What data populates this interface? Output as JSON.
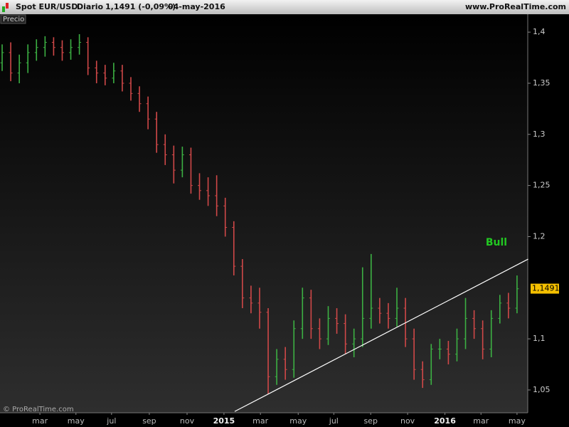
{
  "chart_data": {
    "type": "ohlc",
    "title": "Spot EUR/USD",
    "period": "Diario",
    "price_change": "1,1491 (-0,09%)",
    "date": "04-may-2016",
    "site": "www.ProRealTime.com",
    "pane_label": "Precio",
    "copyright": "© ProRealTime.com",
    "annotation": "Bull",
    "up_color": "#3cb043",
    "down_color": "#d04848",
    "trendline_color": "#ffffff",
    "annotation_color": "#22c822",
    "x": [
      0,
      2,
      4,
      6,
      8,
      10,
      12,
      14,
      16,
      18,
      20,
      22,
      24,
      26,
      28,
      30,
      32,
      34,
      36,
      38,
      40,
      42,
      44,
      46,
      48,
      50,
      52,
      54,
      56,
      58,
      60,
      62,
      64,
      66,
      68,
      70,
      72,
      74,
      76,
      78,
      80,
      82,
      84,
      86,
      88,
      90,
      92,
      94,
      96,
      98,
      100,
      102,
      104,
      106,
      108,
      110,
      112,
      114,
      116,
      118,
      120
    ],
    "open": [
      1.37,
      1.38,
      1.36,
      1.37,
      1.38,
      1.385,
      1.39,
      1.385,
      1.38,
      1.385,
      1.39,
      1.365,
      1.36,
      1.355,
      1.362,
      1.35,
      1.34,
      1.33,
      1.315,
      1.29,
      1.28,
      1.265,
      1.28,
      1.25,
      1.245,
      1.24,
      1.23,
      1.209,
      1.171,
      1.14,
      1.135,
      1.126,
      1.063,
      1.08,
      1.07,
      1.11,
      1.14,
      1.11,
      1.1,
      1.12,
      1.115,
      1.095,
      1.1,
      1.12,
      1.13,
      1.125,
      1.12,
      1.13,
      1.1,
      1.07,
      1.06,
      1.09,
      1.09,
      1.085,
      1.1,
      1.12,
      1.11,
      1.09,
      1.12,
      1.135,
      1.13
    ],
    "high": [
      1.388,
      1.39,
      1.378,
      1.388,
      1.393,
      1.396,
      1.395,
      1.392,
      1.393,
      1.398,
      1.395,
      1.372,
      1.368,
      1.37,
      1.368,
      1.356,
      1.347,
      1.337,
      1.322,
      1.3,
      1.289,
      1.288,
      1.287,
      1.262,
      1.258,
      1.26,
      1.238,
      1.215,
      1.178,
      1.152,
      1.15,
      1.13,
      1.09,
      1.092,
      1.118,
      1.15,
      1.148,
      1.12,
      1.132,
      1.13,
      1.124,
      1.11,
      1.17,
      1.183,
      1.14,
      1.135,
      1.15,
      1.14,
      1.11,
      1.078,
      1.095,
      1.1,
      1.098,
      1.11,
      1.14,
      1.128,
      1.118,
      1.128,
      1.143,
      1.145,
      1.162
    ],
    "low": [
      1.362,
      1.352,
      1.35,
      1.36,
      1.372,
      1.376,
      1.377,
      1.372,
      1.373,
      1.378,
      1.358,
      1.35,
      1.348,
      1.35,
      1.342,
      1.333,
      1.322,
      1.305,
      1.282,
      1.27,
      1.252,
      1.258,
      1.242,
      1.236,
      1.23,
      1.22,
      1.2,
      1.162,
      1.13,
      1.125,
      1.11,
      1.046,
      1.055,
      1.06,
      1.062,
      1.1,
      1.1,
      1.09,
      1.094,
      1.105,
      1.085,
      1.082,
      1.092,
      1.11,
      1.115,
      1.11,
      1.112,
      1.092,
      1.06,
      1.052,
      1.055,
      1.08,
      1.075,
      1.078,
      1.09,
      1.1,
      1.08,
      1.082,
      1.115,
      1.12,
      1.125
    ],
    "close": [
      1.38,
      1.36,
      1.37,
      1.38,
      1.385,
      1.39,
      1.385,
      1.38,
      1.385,
      1.39,
      1.365,
      1.36,
      1.355,
      1.362,
      1.35,
      1.34,
      1.33,
      1.315,
      1.29,
      1.28,
      1.265,
      1.28,
      1.25,
      1.245,
      1.24,
      1.23,
      1.209,
      1.171,
      1.14,
      1.135,
      1.126,
      1.063,
      1.08,
      1.07,
      1.11,
      1.14,
      1.11,
      1.1,
      1.12,
      1.115,
      1.095,
      1.1,
      1.12,
      1.13,
      1.125,
      1.12,
      1.13,
      1.1,
      1.07,
      1.06,
      1.09,
      1.09,
      1.085,
      1.1,
      1.12,
      1.11,
      1.09,
      1.12,
      1.135,
      1.13,
      1.149
    ],
    "trendline": {
      "x": [
        54.2,
        122.6
      ],
      "values": [
        1.029,
        1.178
      ]
    },
    "last_price": {
      "value": 1.1491,
      "label": "1,1491"
    },
    "xlim": [
      -0.5,
      122.5
    ],
    "ylim": [
      1.0277,
      1.4175
    ],
    "xticks": [
      {
        "value": 8.8,
        "label": "mar"
      },
      {
        "value": 17.2,
        "label": "may"
      },
      {
        "value": 25.5,
        "label": "jul"
      },
      {
        "value": 34.3,
        "label": "sep"
      },
      {
        "value": 43.1,
        "label": "nov"
      },
      {
        "value": 51.7,
        "label": "2015"
      },
      {
        "value": 60.2,
        "label": "mar"
      },
      {
        "value": 69,
        "label": "may"
      },
      {
        "value": 77.3,
        "label": "jul"
      },
      {
        "value": 85.9,
        "label": "sep"
      },
      {
        "value": 94.5,
        "label": "nov"
      },
      {
        "value": 103.2,
        "label": "2016"
      },
      {
        "value": 111.6,
        "label": "mar"
      },
      {
        "value": 120,
        "label": "may"
      }
    ],
    "yticks": [
      {
        "value": 1.4,
        "label": "1,4"
      },
      {
        "value": 1.35,
        "label": "1,35"
      },
      {
        "value": 1.3,
        "label": "1,3"
      },
      {
        "value": 1.25,
        "label": "1,25"
      },
      {
        "value": 1.2,
        "label": "1,2"
      },
      {
        "value": 1.1,
        "label": "1,1"
      },
      {
        "value": 1.05,
        "label": "1,05"
      }
    ]
  }
}
